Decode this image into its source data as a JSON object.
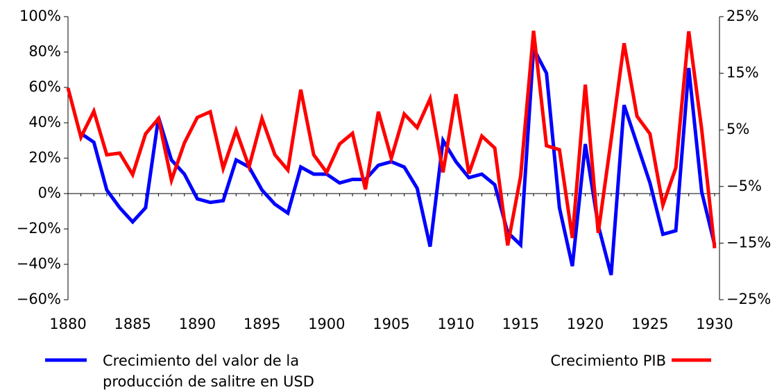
{
  "chart_data": {
    "type": "line",
    "x": [
      1880,
      1881,
      1882,
      1883,
      1884,
      1885,
      1886,
      1887,
      1888,
      1889,
      1890,
      1891,
      1892,
      1893,
      1894,
      1895,
      1896,
      1897,
      1898,
      1899,
      1900,
      1901,
      1902,
      1903,
      1904,
      1905,
      1906,
      1907,
      1908,
      1909,
      1910,
      1911,
      1912,
      1913,
      1914,
      1915,
      1916,
      1917,
      1918,
      1919,
      1920,
      1921,
      1922,
      1923,
      1924,
      1925,
      1926,
      1927,
      1928,
      1929,
      1930
    ],
    "series": [
      {
        "name": "Crecimiento del valor de la producción de salitre en USD",
        "color": "#0000ff",
        "axis": "y",
        "values": [
          null,
          34,
          29,
          2,
          -8,
          -16,
          -8,
          43,
          19,
          11,
          -3,
          -5,
          -4,
          19,
          15,
          2,
          -6,
          -11,
          15,
          11,
          11,
          6,
          8,
          8,
          16,
          18,
          15,
          3,
          -30,
          30,
          18,
          9,
          11,
          5,
          -22,
          -29,
          82,
          68,
          -8,
          -41,
          28,
          -18,
          -46,
          50,
          28,
          6,
          -23,
          -21,
          71,
          1,
          -29
        ]
      },
      {
        "name": "Crecimiento PIB",
        "color": "#ff0000",
        "axis": "y2",
        "values": [
          12.4,
          3.7,
          8.3,
          0.6,
          0.9,
          -2.9,
          4.3,
          7.0,
          -3.9,
          2.7,
          7.2,
          8.2,
          -1.8,
          4.9,
          -1.5,
          7.0,
          0.6,
          -2.1,
          12.1,
          0.6,
          -2.5,
          2.5,
          4.4,
          -5.5,
          8.2,
          0,
          7.8,
          5.4,
          10.5,
          -2.5,
          11.3,
          -2.7,
          3.9,
          1.8,
          -15.4,
          -3.2,
          22.5,
          2.2,
          1.5,
          -14.1,
          13.0,
          -13.2,
          3.3,
          20.3,
          7.4,
          4.3,
          -8.3,
          -1.7,
          22.4,
          5.1,
          -15.9
        ]
      }
    ],
    "xlim": [
      1880,
      1930
    ],
    "xticks": [
      1880,
      1885,
      1890,
      1895,
      1900,
      1905,
      1910,
      1915,
      1920,
      1925,
      1930
    ],
    "ylim": [
      -60,
      100
    ],
    "yticks": [
      {
        "value": -60,
        "label": "−60%"
      },
      {
        "value": -40,
        "label": "−40%"
      },
      {
        "value": -20,
        "label": "−20%"
      },
      {
        "value": 0,
        "label": "0%"
      },
      {
        "value": 20,
        "label": "20%"
      },
      {
        "value": 40,
        "label": "40%"
      },
      {
        "value": 60,
        "label": "60%"
      },
      {
        "value": 80,
        "label": "80%"
      },
      {
        "value": 100,
        "label": "100%"
      }
    ],
    "y2lim": [
      -25,
      25
    ],
    "y2ticks": [
      {
        "value": -25,
        "label": "−25%"
      },
      {
        "value": -15,
        "label": "−15%"
      },
      {
        "value": -5,
        "label": "−5%"
      },
      {
        "value": 5,
        "label": "5%"
      },
      {
        "value": 15,
        "label": "15%"
      },
      {
        "value": 25,
        "label": "25%"
      }
    ]
  }
}
